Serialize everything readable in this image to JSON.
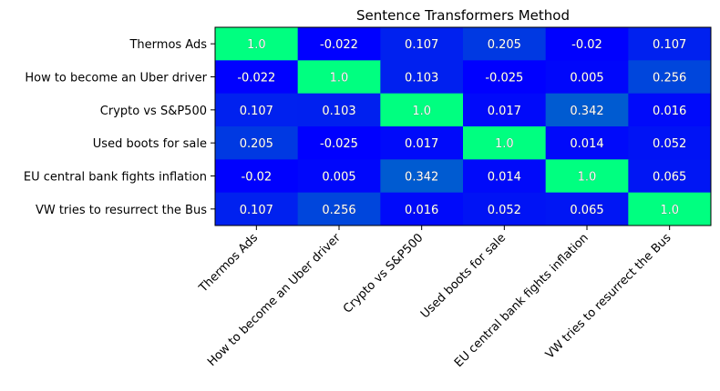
{
  "chart_data": {
    "type": "heatmap",
    "title": "Sentence Transformers Method",
    "xlabel": "",
    "ylabel": "",
    "labels": [
      "Thermos Ads",
      "How to become an Uber driver",
      "Crypto vs S&P500",
      "Used boots for sale",
      "EU central bank fights inflation",
      "VW tries to resurrect the Bus"
    ],
    "matrix": [
      [
        "1.0",
        "-0.022",
        "0.107",
        "0.205",
        "-0.02",
        "0.107"
      ],
      [
        "-0.022",
        "1.0",
        "0.103",
        "-0.025",
        "0.005",
        "0.256"
      ],
      [
        "0.107",
        "0.103",
        "1.0",
        "0.017",
        "0.342",
        "0.016"
      ],
      [
        "0.205",
        "-0.025",
        "0.017",
        "1.0",
        "0.014",
        "0.052"
      ],
      [
        "-0.02",
        "0.005",
        "0.342",
        "0.014",
        "1.0",
        "0.065"
      ],
      [
        "0.107",
        "0.256",
        "0.016",
        "0.052",
        "0.065",
        "1.0"
      ]
    ],
    "colormap": "winter",
    "color_low": "#0000ff",
    "color_high": "#00ff80"
  }
}
